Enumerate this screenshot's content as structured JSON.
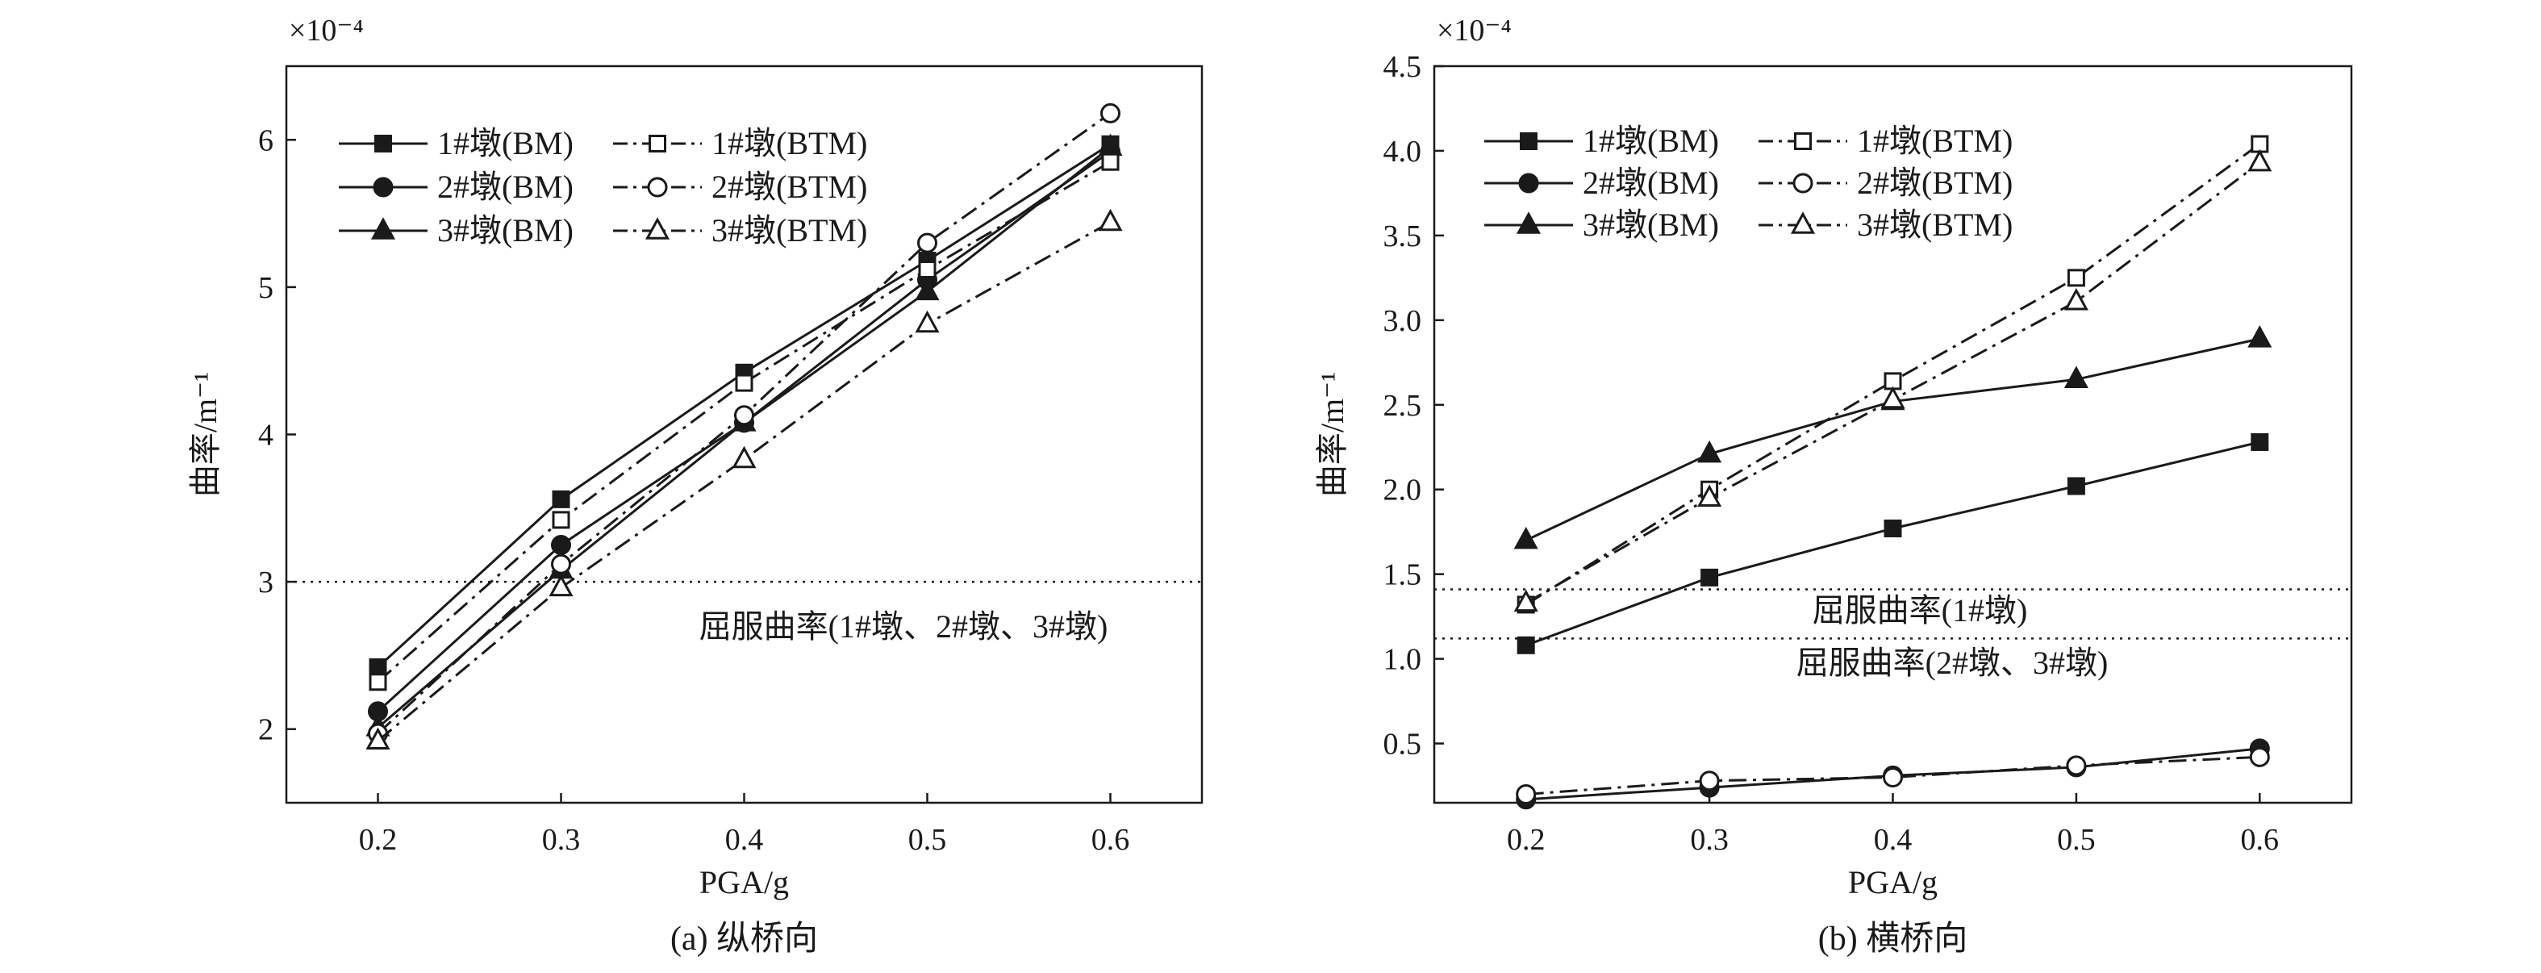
{
  "chart_data": [
    {
      "type": "line",
      "caption": "(a) 纵桥向",
      "xlabel": "PGA/g",
      "ylabel": "曲率/m⁻¹",
      "y_multiplier": "×10⁻⁴",
      "x": [
        0.2,
        0.3,
        0.4,
        0.5,
        0.6
      ],
      "x_tick_labels": [
        "0.2",
        "0.3",
        "0.4",
        "0.5",
        "0.6"
      ],
      "xlim": [
        0.15,
        0.65
      ],
      "ylim": [
        1.5,
        6.5
      ],
      "y_ticks": [
        2,
        3,
        4,
        5,
        6
      ],
      "y_tick_labels": [
        "2",
        "3",
        "4",
        "5",
        "6"
      ],
      "series": [
        {
          "name": "1#墩(BM)",
          "marker": "square",
          "filled": true,
          "line": "solid",
          "values": [
            2.42,
            3.56,
            4.42,
            5.18,
            5.97
          ]
        },
        {
          "name": "2#墩(BM)",
          "marker": "circle",
          "filled": true,
          "line": "solid",
          "values": [
            2.12,
            3.25,
            4.08,
            5.05,
            5.92
          ]
        },
        {
          "name": "3#墩(BM)",
          "marker": "triangle",
          "filled": true,
          "line": "solid",
          "values": [
            2.01,
            3.08,
            4.08,
            4.97,
            5.95
          ]
        },
        {
          "name": "1#墩(BTM)",
          "marker": "square",
          "filled": false,
          "line": "dashdot",
          "values": [
            2.32,
            3.42,
            4.35,
            5.12,
            5.85
          ]
        },
        {
          "name": "2#墩(BTM)",
          "marker": "circle",
          "filled": false,
          "line": "dashdot",
          "values": [
            1.97,
            3.12,
            4.13,
            5.3,
            6.18
          ]
        },
        {
          "name": "3#墩(BTM)",
          "marker": "triangle",
          "filled": false,
          "line": "dashdot",
          "values": [
            1.92,
            2.96,
            3.83,
            4.75,
            5.44
          ]
        }
      ],
      "reference_lines": [
        {
          "y": 3.0,
          "label": "屈服曲率(1#墩、2#墩、3#墩)"
        }
      ],
      "legend": "top-left"
    },
    {
      "type": "line",
      "caption": "(b) 横桥向",
      "xlabel": "PGA/g",
      "ylabel": "曲率/m⁻¹",
      "y_multiplier": "×10⁻⁴",
      "x": [
        0.2,
        0.3,
        0.4,
        0.5,
        0.6
      ],
      "x_tick_labels": [
        "0.2",
        "0.3",
        "0.4",
        "0.5",
        "0.6"
      ],
      "xlim": [
        0.15,
        0.65
      ],
      "ylim": [
        0.15,
        4.5
      ],
      "y_ticks": [
        0.5,
        1.0,
        1.5,
        2.0,
        2.5,
        3.0,
        3.5,
        4.0,
        4.5
      ],
      "y_tick_labels": [
        "0.5",
        "1.0",
        "1.5",
        "2.0",
        "2.5",
        "3.0",
        "3.5",
        "4.0",
        "4.5"
      ],
      "series": [
        {
          "name": "1#墩(BM)",
          "marker": "square",
          "filled": true,
          "line": "solid",
          "values": [
            1.08,
            1.48,
            1.77,
            2.02,
            2.28
          ]
        },
        {
          "name": "2#墩(BM)",
          "marker": "circle",
          "filled": true,
          "line": "solid",
          "values": [
            0.17,
            0.24,
            0.31,
            0.36,
            0.47
          ]
        },
        {
          "name": "3#墩(BM)",
          "marker": "triangle",
          "filled": true,
          "line": "solid",
          "values": [
            1.7,
            2.21,
            2.52,
            2.65,
            2.89
          ]
        },
        {
          "name": "1#墩(BTM)",
          "marker": "square",
          "filled": false,
          "line": "dashdot",
          "values": [
            1.32,
            2.0,
            2.64,
            3.25,
            4.04
          ]
        },
        {
          "name": "2#墩(BTM)",
          "marker": "circle",
          "filled": false,
          "line": "dashdot",
          "values": [
            0.2,
            0.28,
            0.3,
            0.37,
            0.42
          ]
        },
        {
          "name": "3#墩(BTM)",
          "marker": "triangle",
          "filled": false,
          "line": "dashdot",
          "values": [
            1.33,
            1.95,
            2.53,
            3.11,
            3.93
          ]
        }
      ],
      "reference_lines": [
        {
          "y": 1.41,
          "label": "屈服曲率(1#墩)"
        },
        {
          "y": 1.12,
          "label": "屈服曲率(2#墩、3#墩)"
        }
      ],
      "legend": "top-left"
    }
  ]
}
